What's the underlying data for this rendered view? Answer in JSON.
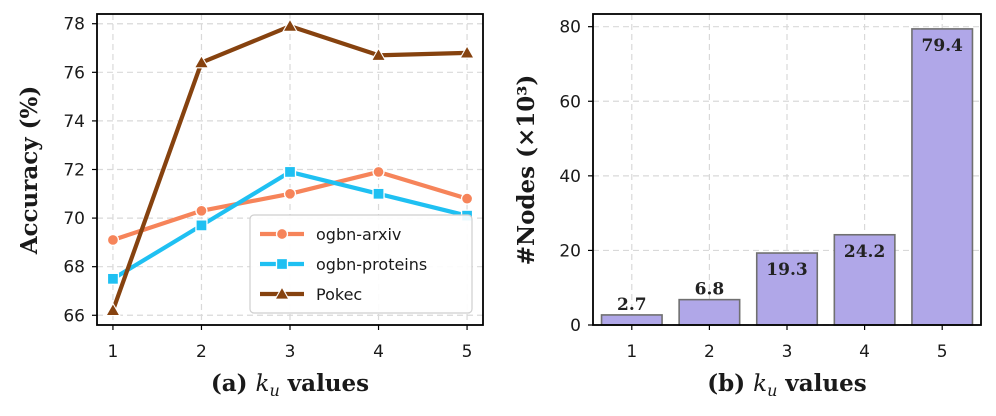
{
  "chart_data": [
    {
      "type": "line",
      "title": "",
      "xlabel_prefix": "(a) ",
      "xlabel_var": "k",
      "xlabel_sub": "u",
      "xlabel_suffix": " values",
      "ylabel": "Accuracy (%)",
      "x": [
        1,
        2,
        3,
        4,
        5
      ],
      "xlim": [
        0.82,
        5.18
      ],
      "ylim": [
        65.6,
        78.4
      ],
      "yticks": [
        66,
        68,
        70,
        72,
        74,
        76,
        78
      ],
      "grid": true,
      "legend": "lower-right",
      "series": [
        {
          "name": "ogbn-arxiv",
          "marker": "circle",
          "color": "#f6845a",
          "values": [
            69.1,
            70.3,
            71.0,
            71.9,
            70.8
          ]
        },
        {
          "name": "ogbn-proteins",
          "marker": "square",
          "color": "#1fc0f2",
          "values": [
            67.5,
            69.7,
            71.9,
            71.0,
            70.1
          ]
        },
        {
          "name": "Pokec",
          "marker": "triangle",
          "color": "#86420f",
          "values": [
            66.2,
            76.4,
            77.9,
            76.7,
            76.8
          ]
        }
      ]
    },
    {
      "type": "bar",
      "title": "",
      "xlabel_prefix": "(b) ",
      "xlabel_var": "k",
      "xlabel_sub": "u",
      "xlabel_suffix": " values",
      "ylabel": "#Nodes (×10³)",
      "categories": [
        "1",
        "2",
        "3",
        "4",
        "5"
      ],
      "values": [
        2.7,
        6.8,
        19.3,
        24.2,
        79.4
      ],
      "labels": [
        "2.7",
        "6.8",
        "19.3",
        "24.2",
        "79.4"
      ],
      "ylim": [
        0,
        83.4
      ],
      "yticks": [
        0,
        20,
        40,
        60,
        80
      ],
      "grid": true,
      "color": "#b0a7e8",
      "edgecolor": "#707070"
    }
  ]
}
